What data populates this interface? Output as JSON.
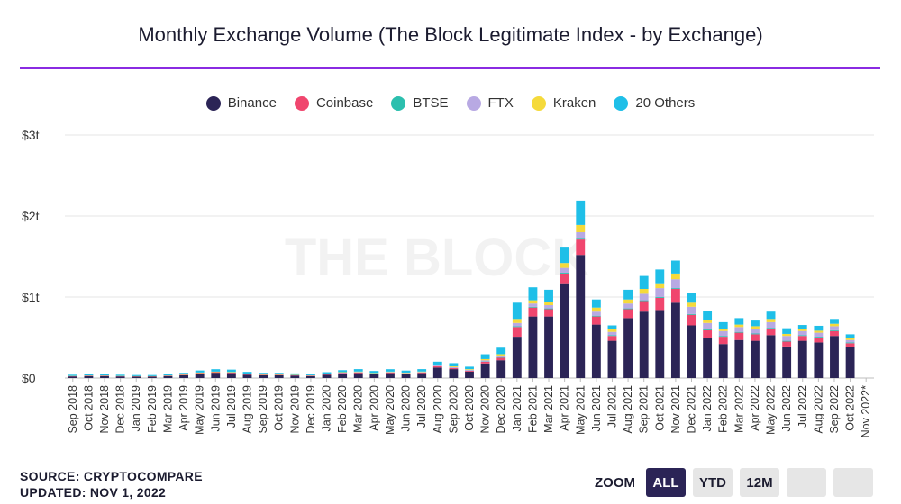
{
  "title": "Monthly Exchange Volume (The Block Legitimate Index - by Exchange)",
  "watermark": "THE BLOCK",
  "footer": {
    "source": "SOURCE: CRYPTOCOMPARE",
    "updated": "UPDATED: NOV 1, 2022"
  },
  "zoom": {
    "label": "ZOOM",
    "buttons": [
      "ALL",
      "YTD",
      "12M",
      "",
      ""
    ],
    "active": "ALL"
  },
  "colors": {
    "title_rule": "#8a2be2",
    "zoom_active": "#2b2456"
  },
  "chart_data": {
    "type": "bar",
    "stacked": true,
    "legend_position": "top-center",
    "grid": true,
    "y_ticks": [
      "$0",
      "$1t",
      "$2t",
      "$3t"
    ],
    "ylim": [
      0,
      3000
    ],
    "y_unit": "billions USD",
    "categories": [
      "Sep 2018",
      "Oct 2018",
      "Nov 2018",
      "Dec 2018",
      "Jan 2019",
      "Feb 2019",
      "Mar 2019",
      "Apr 2019",
      "May 2019",
      "Jun 2019",
      "Jul 2019",
      "Aug 2019",
      "Sep 2019",
      "Oct 2019",
      "Nov 2019",
      "Dec 2019",
      "Jan 2020",
      "Feb 2020",
      "Mar 2020",
      "Apr 2020",
      "May 2020",
      "Jun 2020",
      "Jul 2020",
      "Aug 2020",
      "Sep 2020",
      "Oct 2020",
      "Nov 2020",
      "Dec 2020",
      "Jan 2021",
      "Feb 2021",
      "Mar 2021",
      "Apr 2021",
      "May 2021",
      "Jun 2021",
      "Jul 2021",
      "Aug 2021",
      "Sep 2021",
      "Oct 2021",
      "Nov 2021",
      "Dec 2021",
      "Jan 2022",
      "Feb 2022",
      "Mar 2022",
      "Apr 2022",
      "May 2022",
      "Jun 2022",
      "Jul 2022",
      "Aug 2022",
      "Sep 2022",
      "Oct 2022",
      "Nov 2022*"
    ],
    "series": [
      {
        "name": "Binance",
        "color": "#2b2456",
        "values": [
          20,
          25,
          25,
          20,
          18,
          18,
          25,
          35,
          55,
          65,
          60,
          40,
          35,
          35,
          30,
          25,
          40,
          55,
          60,
          45,
          60,
          50,
          60,
          130,
          110,
          80,
          180,
          220,
          510,
          760,
          760,
          1170,
          1520,
          660,
          460,
          740,
          820,
          840,
          930,
          650,
          490,
          420,
          470,
          460,
          530,
          390,
          460,
          440,
          520,
          380,
          0
        ]
      },
      {
        "name": "Coinbase",
        "color": "#f0466e",
        "values": [
          3,
          4,
          4,
          3,
          3,
          3,
          4,
          5,
          7,
          8,
          8,
          6,
          5,
          5,
          5,
          4,
          5,
          7,
          8,
          7,
          8,
          7,
          8,
          15,
          12,
          10,
          20,
          30,
          120,
          110,
          90,
          120,
          190,
          100,
          60,
          110,
          130,
          150,
          170,
          130,
          100,
          90,
          90,
          80,
          80,
          60,
          60,
          60,
          60,
          50,
          0
        ]
      },
      {
        "name": "BTSE",
        "color": "#2cbfae",
        "values": [
          0,
          0,
          0,
          0,
          0,
          0,
          0,
          0,
          0,
          0,
          0,
          0,
          0,
          0,
          0,
          0,
          0,
          0,
          0,
          0,
          0,
          0,
          0,
          2,
          2,
          2,
          4,
          5,
          10,
          10,
          10,
          10,
          10,
          10,
          10,
          10,
          10,
          10,
          10,
          10,
          10,
          10,
          10,
          10,
          10,
          10,
          10,
          10,
          10,
          10,
          0
        ]
      },
      {
        "name": "FTX",
        "color": "#b8a9e3",
        "values": [
          0,
          0,
          0,
          0,
          0,
          0,
          0,
          0,
          0,
          0,
          0,
          0,
          0,
          0,
          0,
          2,
          3,
          5,
          6,
          5,
          6,
          5,
          6,
          10,
          10,
          10,
          15,
          20,
          40,
          40,
          40,
          60,
          80,
          50,
          40,
          60,
          80,
          110,
          110,
          90,
          80,
          60,
          60,
          60,
          70,
          60,
          50,
          50,
          50,
          30,
          0
        ]
      },
      {
        "name": "Kraken",
        "color": "#f5da3b",
        "values": [
          3,
          3,
          3,
          3,
          3,
          3,
          3,
          4,
          6,
          6,
          6,
          5,
          4,
          4,
          4,
          3,
          4,
          5,
          6,
          5,
          5,
          5,
          6,
          10,
          10,
          8,
          15,
          20,
          50,
          40,
          40,
          60,
          90,
          50,
          30,
          50,
          60,
          60,
          70,
          50,
          40,
          30,
          30,
          30,
          40,
          25,
          25,
          25,
          30,
          20,
          0
        ]
      },
      {
        "name": "20 Others",
        "color": "#1fbfe8",
        "values": [
          15,
          20,
          20,
          15,
          13,
          13,
          15,
          20,
          25,
          30,
          30,
          25,
          20,
          20,
          18,
          15,
          20,
          25,
          30,
          25,
          30,
          25,
          30,
          35,
          40,
          30,
          60,
          80,
          200,
          160,
          150,
          190,
          300,
          100,
          50,
          120,
          160,
          170,
          160,
          120,
          110,
          80,
          80,
          70,
          90,
          70,
          50,
          60,
          60,
          50,
          0
        ]
      }
    ]
  }
}
